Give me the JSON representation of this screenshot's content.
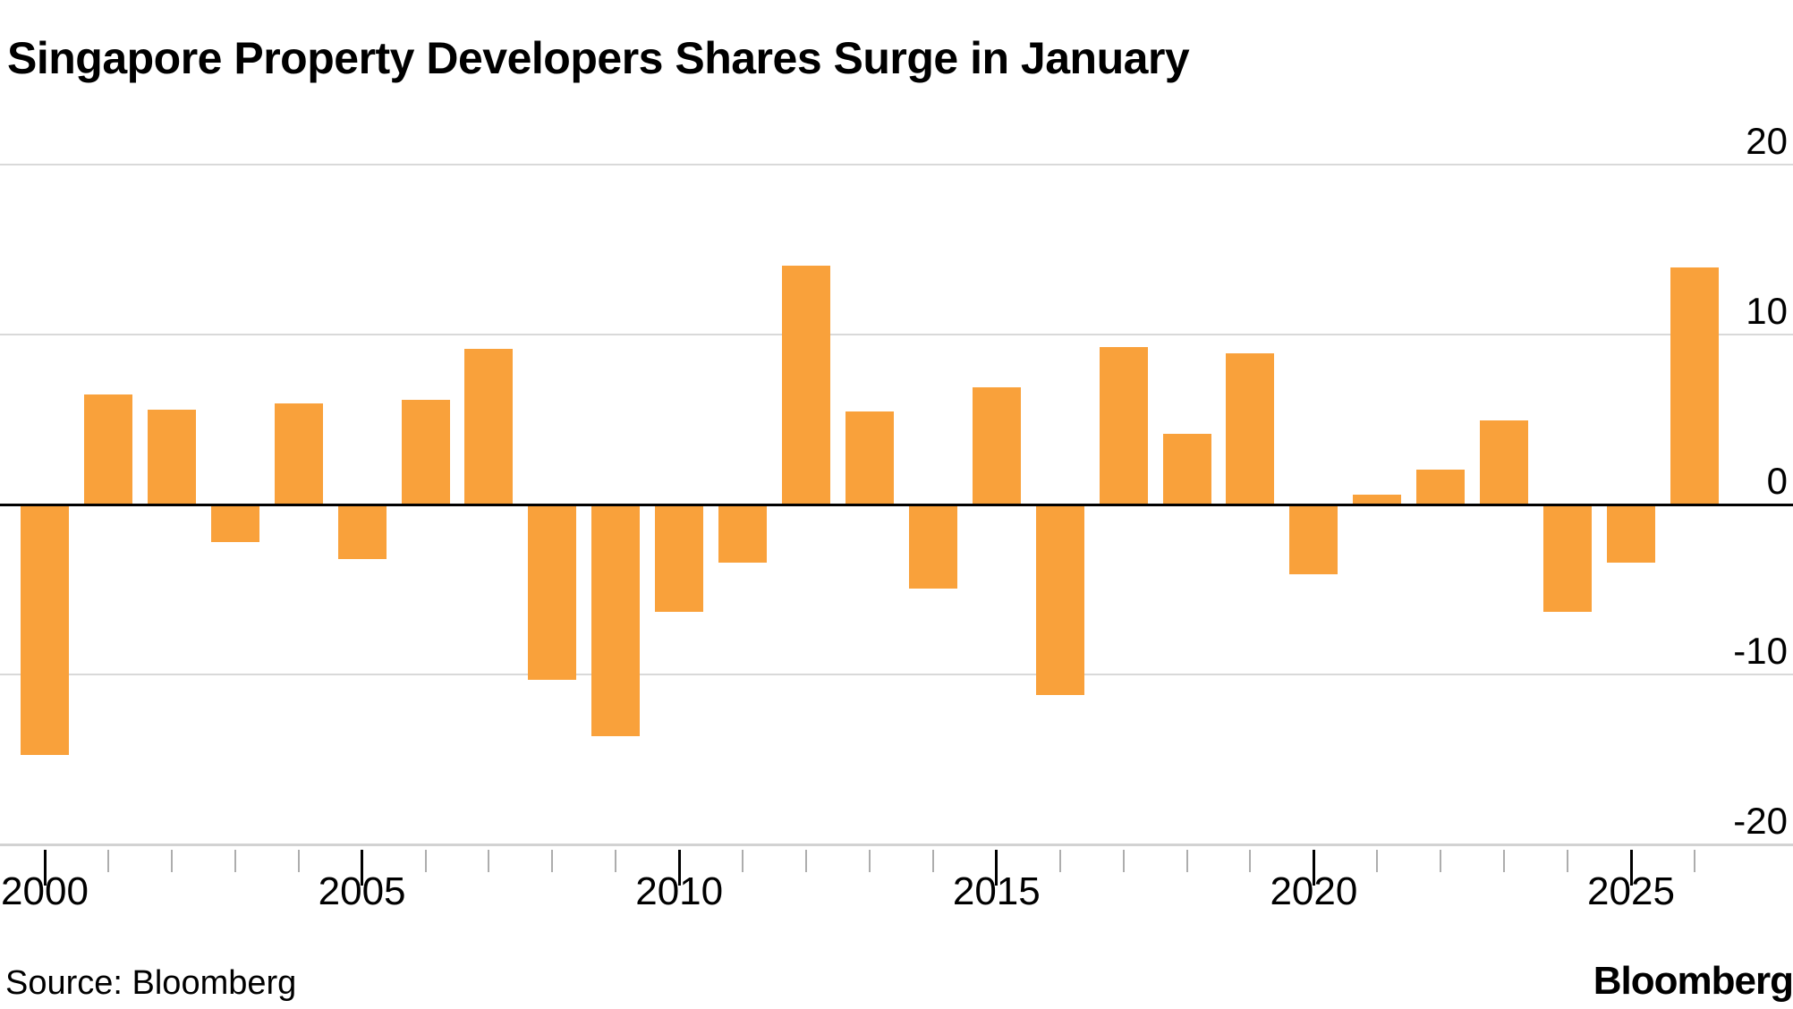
{
  "title": "Singapore Property Developers Shares Surge in January",
  "footer": {
    "source": "Source: Bloomberg",
    "brand": "Bloomberg"
  },
  "colors": {
    "bar": "#F9A13B",
    "gridline": "#D9D9D9",
    "zero_line": "#000000",
    "axis_line": "#D2D2D2",
    "minor_tick": "#ADADAD",
    "major_tick": "#000000",
    "text": "#000000",
    "background": "#FFFFFF"
  },
  "chart_data": {
    "type": "bar",
    "title": "Singapore Property Developers Shares Surge in January",
    "xlabel": "",
    "ylabel": "",
    "x": [
      2000,
      2001,
      2002,
      2003,
      2004,
      2005,
      2006,
      2007,
      2008,
      2009,
      2010,
      2011,
      2012,
      2013,
      2014,
      2015,
      2016,
      2017,
      2018,
      2019,
      2020,
      2021,
      2022,
      2023,
      2024,
      2025,
      2026
    ],
    "values": [
      -14.7,
      6.5,
      5.6,
      -2.2,
      6.0,
      -3.2,
      6.2,
      9.2,
      -10.3,
      -13.6,
      -6.3,
      -3.4,
      14.1,
      5.5,
      -4.9,
      6.9,
      -11.2,
      9.3,
      4.2,
      8.9,
      -4.1,
      0.6,
      2.1,
      5.0,
      -6.3,
      -3.4,
      14.0
    ],
    "ylim": [
      -20,
      20
    ],
    "yticks": [
      20,
      10,
      0,
      -10,
      -20
    ],
    "ytick_side": "right",
    "xticks_labeled": [
      2000,
      2005,
      2010,
      2015,
      2020,
      2025
    ],
    "grid": "horizontal",
    "legend": "none"
  }
}
